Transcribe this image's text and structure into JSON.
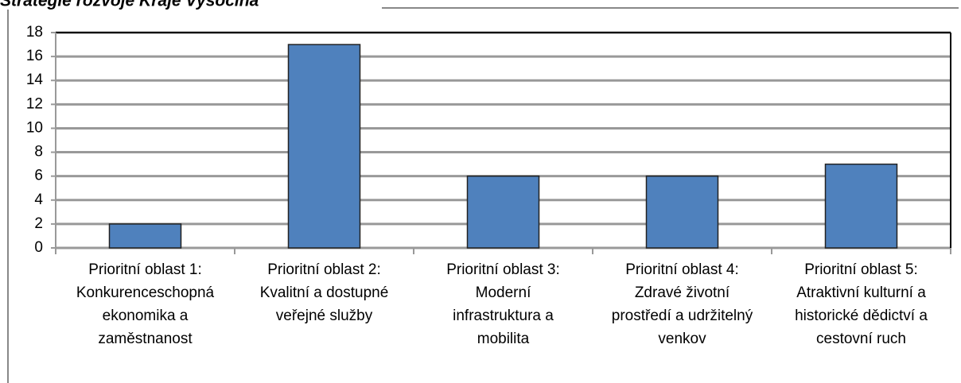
{
  "chart_data": {
    "type": "bar",
    "title": "Strategie rozvoje Kraje Vysočina",
    "categories": [
      "Prioritní oblast 1:\nKonkurenceschopná\nekonomika a\nzaměstnanost",
      "Prioritní oblast 2:\nKvalitní a dostupné\nveřejné služby",
      "Prioritní oblast 3:\nModerní\ninfrastruktura a\nmobilita",
      "Prioritní oblast 4:\nZdravé životní\nprostředí a udržitelný\nvenkov",
      "Prioritní oblast 5:\nAtraktivní kulturní a\nhistorické dědictví a\ncestovní ruch"
    ],
    "values": [
      2,
      17,
      6,
      6,
      7
    ],
    "color": "#4f81bd",
    "ylim": [
      0,
      18
    ],
    "yticks": [
      0,
      2,
      4,
      6,
      8,
      10,
      12,
      14,
      16,
      18
    ],
    "grid": true
  }
}
